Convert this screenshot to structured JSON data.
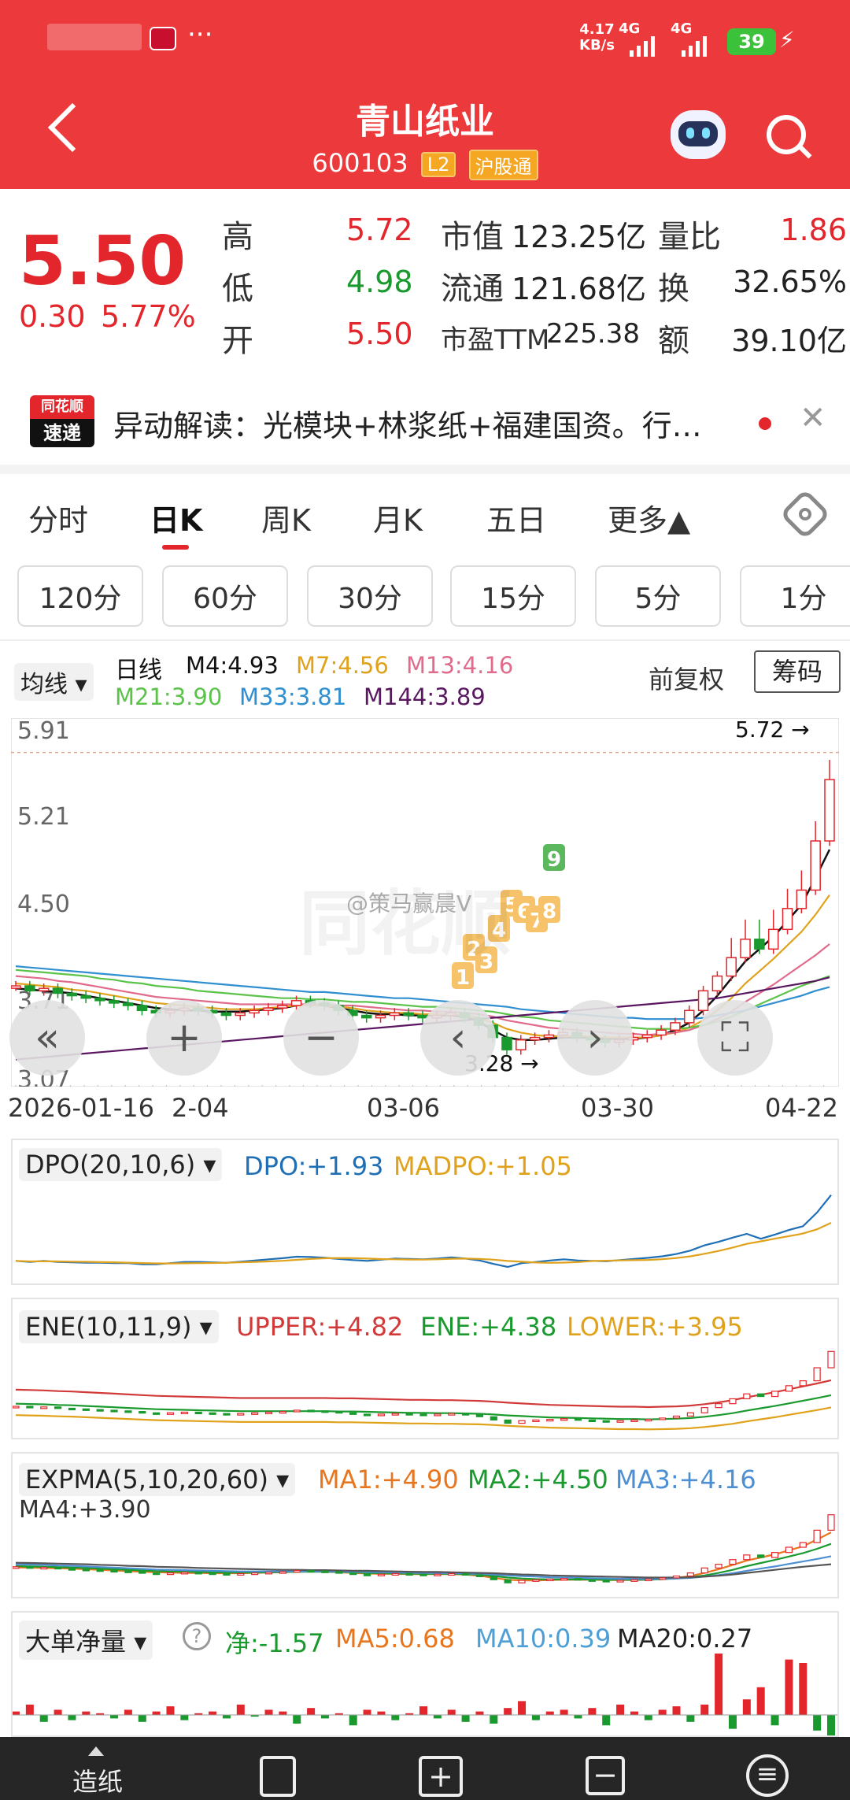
{
  "status": {
    "speed": "4.17",
    "speed_unit": "KB/s",
    "net1": "4G",
    "net2": "4G",
    "battery": "39",
    "more": "···"
  },
  "header": {
    "title": "青山纸业",
    "code": "600103",
    "tag_l2": "L2",
    "tag_hgt": "沪股通"
  },
  "quote": {
    "price": "5.50",
    "change": "0.30",
    "change_pct": "5.77%",
    "rows": [
      {
        "k1": "高",
        "v1": "5.72",
        "k2": "市值",
        "v2": "123.25亿",
        "k3": "量比",
        "v3": "1.86"
      },
      {
        "k1": "低",
        "v1": "4.98",
        "k2": "流通",
        "v2": "121.68亿",
        "k3": "换",
        "v3": "32.65%"
      },
      {
        "k1": "开",
        "v1": "5.50",
        "k2": "市盈TTM",
        "v2": "225.38",
        "k3": "额",
        "v3": "39.10亿"
      }
    ]
  },
  "news": {
    "logo_top": "同花顺",
    "logo_bottom": "速递",
    "text": "异动解读：光模块+林浆纸+福建国资。行…"
  },
  "tabs": [
    "分时",
    "日K",
    "周K",
    "月K",
    "五日",
    "更多▲"
  ],
  "periods": [
    "120分",
    "60分",
    "30分",
    "15分",
    "5分",
    "1分"
  ],
  "ma": {
    "dropdown": "均线",
    "line": "日线",
    "m4": "M4:4.93",
    "m7": "M7:4.56",
    "m13": "M13:4.16",
    "m21": "M21:3.90",
    "m33": "M33:3.81",
    "m144": "M144:3.89",
    "fq": "前复权",
    "chips": "筹码"
  },
  "chart_data": {
    "type": "line",
    "yticks": [
      "5.91",
      "5.21",
      "4.50",
      "3.71",
      "3.07"
    ],
    "xticks": [
      "2026-01-16",
      "2-04",
      "03-06",
      "03-30",
      "04-22"
    ],
    "high_label": "5.72",
    "low_label": "3.28",
    "markers": [
      "1",
      "2",
      "3",
      "4",
      "5",
      "6",
      "7",
      "8",
      "9"
    ],
    "watermark": "@策马赢晨V",
    "close": [
      3.82,
      3.78,
      3.8,
      3.76,
      3.74,
      3.72,
      3.7,
      3.68,
      3.66,
      3.62,
      3.6,
      3.62,
      3.64,
      3.62,
      3.6,
      3.58,
      3.6,
      3.62,
      3.64,
      3.66,
      3.7,
      3.68,
      3.66,
      3.62,
      3.58,
      3.56,
      3.58,
      3.6,
      3.58,
      3.56,
      3.58,
      3.6,
      3.56,
      3.5,
      3.4,
      3.3,
      3.38,
      3.4,
      3.42,
      3.44,
      3.4,
      3.38,
      3.36,
      3.38,
      3.4,
      3.42,
      3.46,
      3.52,
      3.62,
      3.78,
      3.9,
      4.05,
      4.2,
      4.12,
      4.28,
      4.45,
      4.6,
      5.0,
      5.5
    ],
    "series": [
      {
        "color": "#111111",
        "values": [
          3.8,
          3.79,
          3.78,
          3.77,
          3.76,
          3.74,
          3.72,
          3.7,
          3.68,
          3.66,
          3.64,
          3.63,
          3.62,
          3.62,
          3.61,
          3.61,
          3.61,
          3.62,
          3.63,
          3.64,
          3.66,
          3.67,
          3.66,
          3.64,
          3.62,
          3.6,
          3.59,
          3.59,
          3.58,
          3.58,
          3.58,
          3.58,
          3.57,
          3.53,
          3.46,
          3.4,
          3.38,
          3.38,
          3.39,
          3.4,
          3.4,
          3.4,
          3.39,
          3.39,
          3.39,
          3.4,
          3.42,
          3.46,
          3.52,
          3.62,
          3.74,
          3.88,
          4.02,
          4.12,
          4.22,
          4.35,
          4.48,
          4.7,
          4.93
        ]
      },
      {
        "color": "#e0a21b",
        "values": [
          3.84,
          3.83,
          3.82,
          3.81,
          3.79,
          3.78,
          3.76,
          3.74,
          3.72,
          3.7,
          3.68,
          3.67,
          3.66,
          3.65,
          3.64,
          3.63,
          3.63,
          3.63,
          3.64,
          3.65,
          3.66,
          3.66,
          3.66,
          3.65,
          3.64,
          3.62,
          3.61,
          3.6,
          3.6,
          3.59,
          3.59,
          3.59,
          3.58,
          3.56,
          3.52,
          3.47,
          3.44,
          3.42,
          3.41,
          3.41,
          3.41,
          3.41,
          3.4,
          3.4,
          3.4,
          3.4,
          3.42,
          3.44,
          3.48,
          3.54,
          3.62,
          3.72,
          3.84,
          3.94,
          4.04,
          4.15,
          4.26,
          4.4,
          4.56
        ]
      },
      {
        "color": "#e06b8b",
        "values": [
          3.9,
          3.89,
          3.88,
          3.86,
          3.85,
          3.83,
          3.81,
          3.79,
          3.77,
          3.75,
          3.73,
          3.72,
          3.71,
          3.7,
          3.69,
          3.68,
          3.67,
          3.67,
          3.67,
          3.67,
          3.67,
          3.67,
          3.67,
          3.66,
          3.66,
          3.65,
          3.64,
          3.63,
          3.62,
          3.62,
          3.61,
          3.61,
          3.6,
          3.59,
          3.57,
          3.54,
          3.52,
          3.5,
          3.48,
          3.47,
          3.46,
          3.45,
          3.44,
          3.43,
          3.43,
          3.42,
          3.43,
          3.44,
          3.46,
          3.5,
          3.55,
          3.61,
          3.69,
          3.76,
          3.83,
          3.91,
          3.99,
          4.07,
          4.16
        ]
      },
      {
        "color": "#5cc34a",
        "values": [
          3.95,
          3.94,
          3.93,
          3.92,
          3.91,
          3.9,
          3.88,
          3.87,
          3.85,
          3.84,
          3.82,
          3.81,
          3.8,
          3.78,
          3.77,
          3.76,
          3.75,
          3.74,
          3.73,
          3.72,
          3.72,
          3.71,
          3.71,
          3.7,
          3.69,
          3.69,
          3.68,
          3.67,
          3.66,
          3.65,
          3.65,
          3.64,
          3.63,
          3.62,
          3.61,
          3.59,
          3.57,
          3.56,
          3.54,
          3.53,
          3.52,
          3.51,
          3.5,
          3.49,
          3.48,
          3.47,
          3.47,
          3.47,
          3.48,
          3.5,
          3.53,
          3.57,
          3.62,
          3.67,
          3.72,
          3.77,
          3.82,
          3.86,
          3.9
        ]
      },
      {
        "color": "#2f8fd0",
        "values": [
          3.98,
          3.97,
          3.96,
          3.95,
          3.94,
          3.93,
          3.92,
          3.91,
          3.9,
          3.89,
          3.88,
          3.87,
          3.86,
          3.85,
          3.84,
          3.83,
          3.82,
          3.81,
          3.8,
          3.79,
          3.78,
          3.77,
          3.77,
          3.76,
          3.75,
          3.74,
          3.73,
          3.72,
          3.72,
          3.71,
          3.7,
          3.69,
          3.68,
          3.67,
          3.66,
          3.65,
          3.63,
          3.62,
          3.61,
          3.6,
          3.59,
          3.58,
          3.57,
          3.56,
          3.56,
          3.55,
          3.55,
          3.55,
          3.55,
          3.56,
          3.58,
          3.6,
          3.62,
          3.65,
          3.68,
          3.71,
          3.74,
          3.78,
          3.81
        ]
      },
      {
        "color": "#5a1660",
        "values": [
          3.22,
          3.23,
          3.24,
          3.25,
          3.26,
          3.27,
          3.28,
          3.29,
          3.3,
          3.31,
          3.32,
          3.33,
          3.34,
          3.35,
          3.36,
          3.37,
          3.38,
          3.39,
          3.4,
          3.41,
          3.42,
          3.43,
          3.44,
          3.45,
          3.46,
          3.47,
          3.48,
          3.49,
          3.5,
          3.51,
          3.52,
          3.53,
          3.54,
          3.55,
          3.56,
          3.57,
          3.58,
          3.59,
          3.6,
          3.61,
          3.62,
          3.63,
          3.64,
          3.65,
          3.66,
          3.67,
          3.68,
          3.69,
          3.7,
          3.71,
          3.72,
          3.74,
          3.76,
          3.78,
          3.8,
          3.82,
          3.84,
          3.86,
          3.89
        ]
      }
    ],
    "ylim": [
      3.0,
      6.0
    ]
  },
  "dpo": {
    "name": "DPO(20,10,6)",
    "a": "DPO:+1.93",
    "b": "MADPO:+1.05"
  },
  "ene": {
    "name": "ENE(10,11,9)",
    "a": "UPPER:+4.82",
    "b": "ENE:+4.38",
    "c": "LOWER:+3.95"
  },
  "expma": {
    "name": "EXPMA(5,10,20,60)",
    "a": "MA1:+4.90",
    "b": "MA2:+4.50",
    "c": "MA3:+4.16",
    "d": "MA4:+3.90"
  },
  "bigorder": {
    "name": "大单净量",
    "help": "?",
    "a": "净:-1.57",
    "b": "MA5:0.68",
    "c": "MA10:0.39",
    "d": "MA20:0.27"
  },
  "bottom": {
    "first": "造纸"
  },
  "colors": {
    "up": "#e2262b",
    "down": "#1a9a2e",
    "header": "#ec3a3c"
  }
}
